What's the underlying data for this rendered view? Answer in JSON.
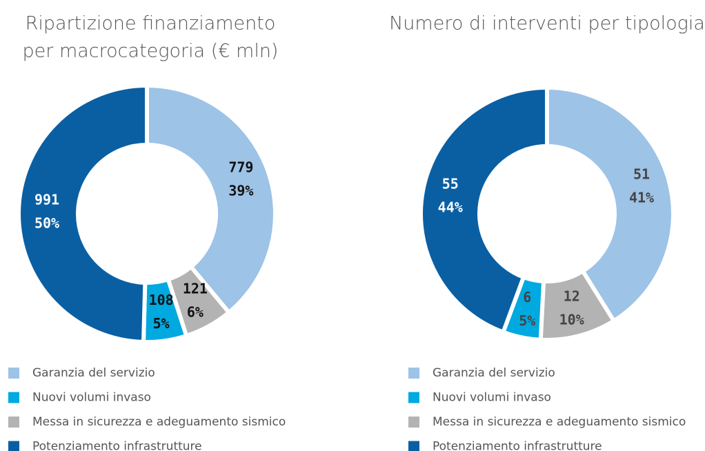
{
  "chart_data": [
    {
      "type": "donut",
      "title": [
        "Ripartizione finanziamento",
        "per macrocategoria (€ mln)"
      ],
      "categories": [
        "Garanzia del servizio",
        "Messa in sicurezza e adeguamento sismico",
        "Nuovi volumi invaso",
        "Potenziamento infrastrutture"
      ],
      "values": [
        779,
        121,
        108,
        991
      ],
      "percent_labels": [
        "39%",
        "6%",
        "5%",
        "50%"
      ],
      "colors": [
        "#9dc3e6",
        "#b3b3b3",
        "#00a9e0",
        "#0a5fa3"
      ]
    },
    {
      "type": "donut",
      "title": [
        "Numero di interventi per tipologia"
      ],
      "categories": [
        "Garanzia del servizio",
        "Messa in sicurezza e adeguamento sismico",
        "Nuovi volumi invaso",
        "Potenziamento infrastrutture"
      ],
      "values": [
        51,
        12,
        6,
        55
      ],
      "percent_labels": [
        "41%",
        "10%",
        "5%",
        "44%"
      ],
      "colors": [
        "#9dc3e6",
        "#b3b3b3",
        "#00a9e0",
        "#0a5fa3"
      ]
    }
  ]
}
